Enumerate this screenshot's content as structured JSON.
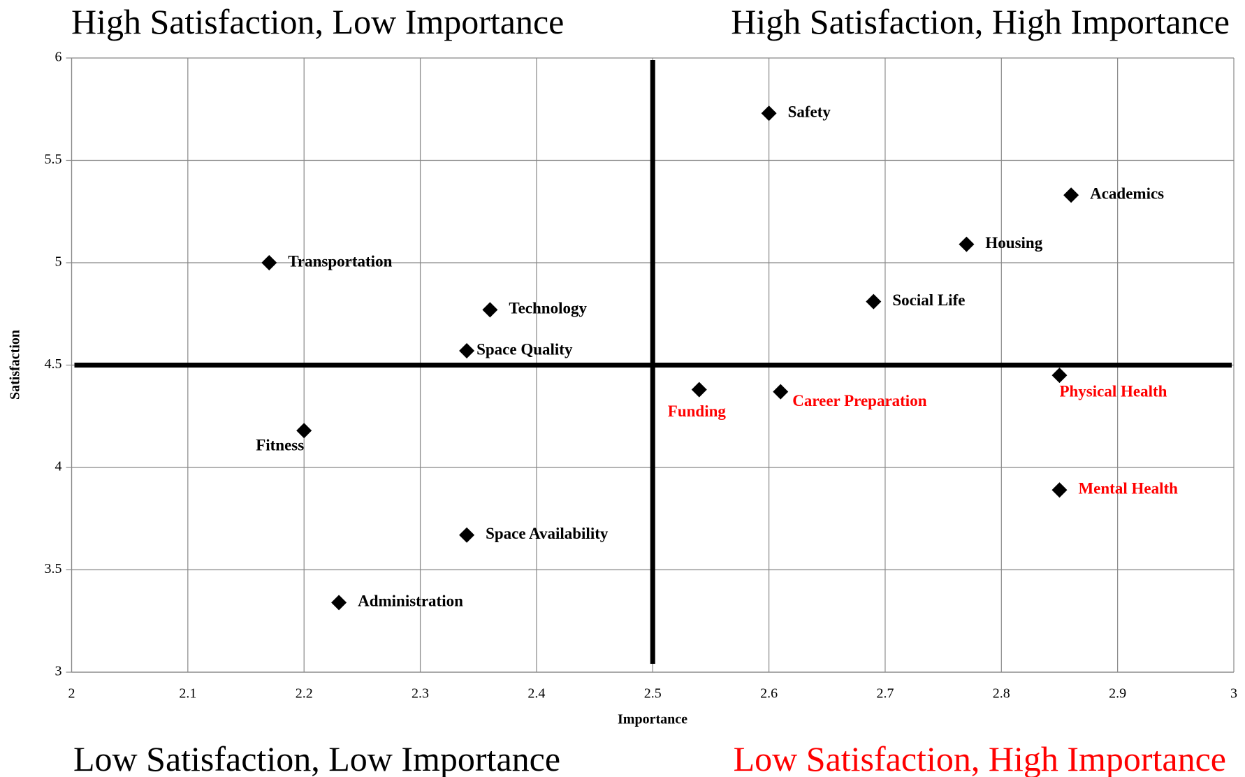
{
  "chart_data": {
    "type": "scatter",
    "x_label": "Importance",
    "y_label": "Satisfaction",
    "xlim": [
      2,
      3
    ],
    "ylim": [
      3,
      6
    ],
    "xticks": [
      2,
      2.1,
      2.2,
      2.3,
      2.4,
      2.5,
      2.6,
      2.7,
      2.8,
      2.9,
      3
    ],
    "yticks": [
      3,
      3.5,
      4,
      4.5,
      5,
      5.5,
      6
    ],
    "grid": true,
    "marker_color": "#000000",
    "reference_lines": {
      "x": 2.5,
      "y": 4.5
    },
    "quadrant_labels": [
      {
        "text": "High Satisfaction, Low Importance",
        "color": "#000000"
      },
      {
        "text": "High Satisfaction, High Importance",
        "color": "#000000"
      },
      {
        "text": "Low Satisfaction, Low Importance",
        "color": "#000000"
      },
      {
        "text": "Low Satisfaction, High Importance",
        "color": "#ff0000"
      }
    ],
    "points": [
      {
        "label": "Safety",
        "x": 2.6,
        "y": 5.73,
        "color": "#000000"
      },
      {
        "label": "Academics",
        "x": 2.86,
        "y": 5.33,
        "color": "#000000"
      },
      {
        "label": "Housing",
        "x": 2.77,
        "y": 5.09,
        "color": "#000000"
      },
      {
        "label": "Social Life",
        "x": 2.69,
        "y": 4.81,
        "color": "#000000"
      },
      {
        "label": "Transportation",
        "x": 2.17,
        "y": 5.0,
        "color": "#000000"
      },
      {
        "label": "Technology",
        "x": 2.36,
        "y": 4.77,
        "color": "#000000"
      },
      {
        "label": "Space Quality",
        "x": 2.34,
        "y": 4.57,
        "color": "#000000"
      },
      {
        "label": "Fitness",
        "x": 2.2,
        "y": 4.18,
        "color": "#000000"
      },
      {
        "label": "Space Availability",
        "x": 2.34,
        "y": 3.67,
        "color": "#000000"
      },
      {
        "label": "Administration",
        "x": 2.23,
        "y": 3.34,
        "color": "#000000"
      },
      {
        "label": "Funding",
        "x": 2.54,
        "y": 4.38,
        "color": "#ff0000"
      },
      {
        "label": "Career Preparation",
        "x": 2.61,
        "y": 4.37,
        "color": "#ff0000"
      },
      {
        "label": "Physical Health",
        "x": 2.85,
        "y": 4.45,
        "color": "#ff0000"
      },
      {
        "label": "Mental Health",
        "x": 2.85,
        "y": 3.89,
        "color": "#ff0000"
      }
    ]
  }
}
